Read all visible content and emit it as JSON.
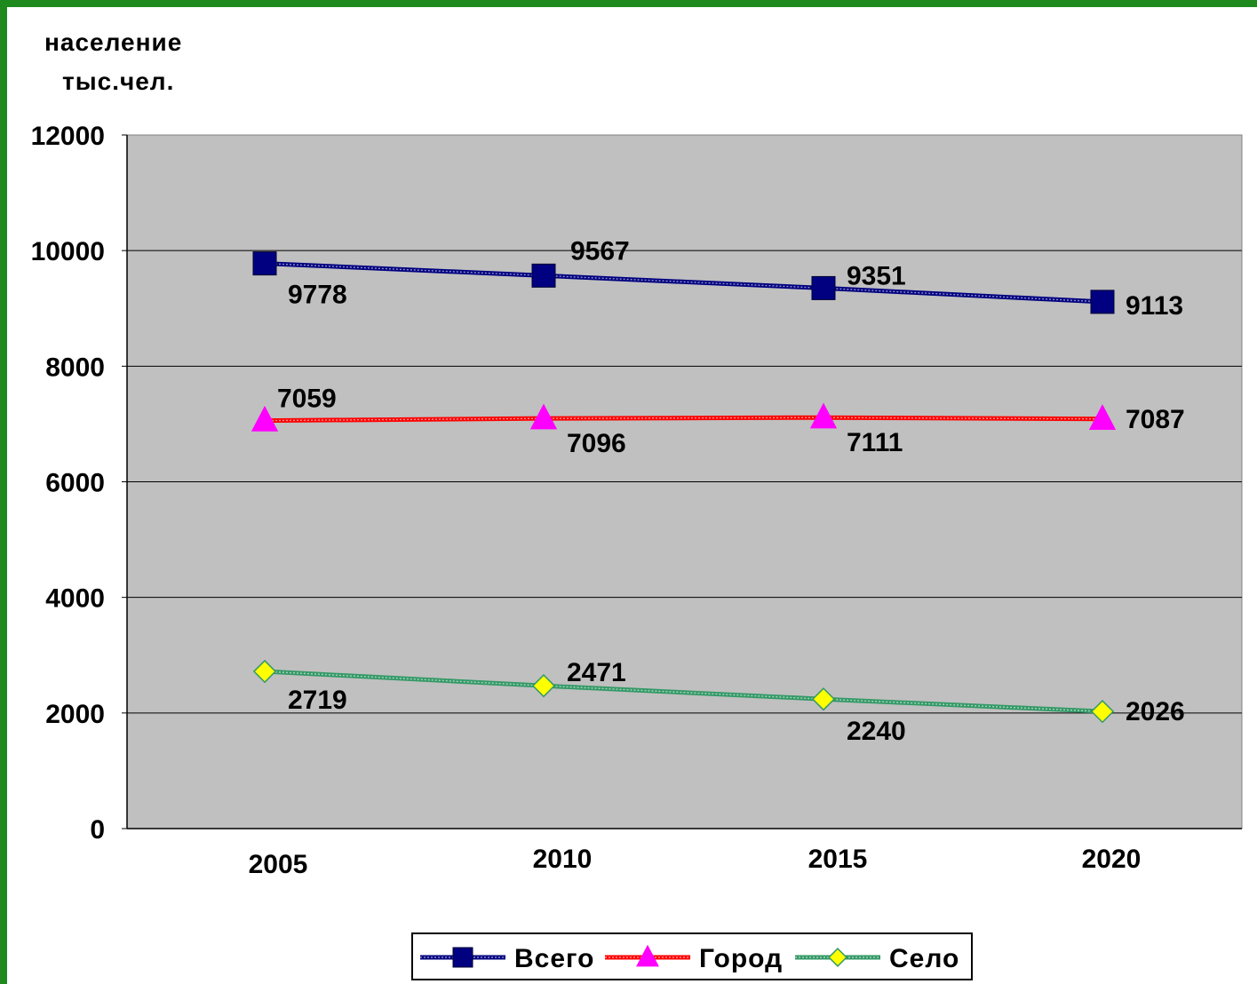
{
  "chart_data": {
    "type": "line",
    "ylabel": [
      "население",
      "тыс.чел."
    ],
    "categories": [
      "2005",
      "2010",
      "2015",
      "2020"
    ],
    "ylim": [
      0,
      12000
    ],
    "yticks": [
      "0",
      "2000",
      "4000",
      "6000",
      "8000",
      "10000",
      "12000"
    ],
    "grid": true,
    "legend_position": "bottom",
    "series": [
      {
        "name": "Всего",
        "values": [
          9778,
          9567,
          9351,
          9113
        ],
        "color": "#000080",
        "marker": "square"
      },
      {
        "name": "Город",
        "values": [
          7059,
          7096,
          7111,
          7087
        ],
        "color": "#ff0000",
        "marker": "triangle",
        "marker_color": "#ff00ff"
      },
      {
        "name": "Село",
        "values": [
          2719,
          2471,
          2240,
          2026
        ],
        "color": "#339966",
        "marker": "diamond",
        "marker_color": "#ffff00"
      }
    ],
    "plot_background": "#c0c0c0"
  }
}
